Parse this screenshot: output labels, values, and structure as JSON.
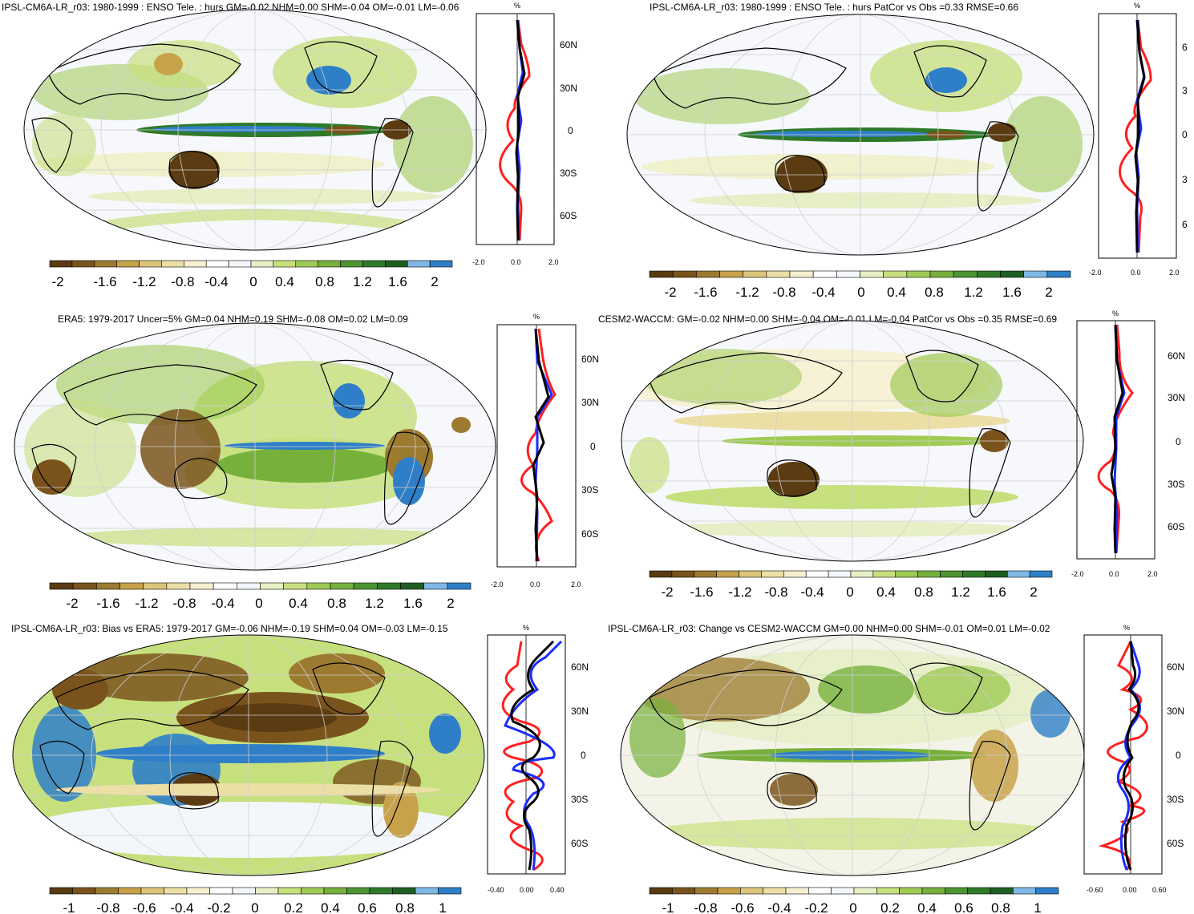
{
  "palettes": {
    "brown_green_blue": [
      "#5a3b12",
      "#7a531c",
      "#9c7a30",
      "#c8a24a",
      "#dcc57a",
      "#ecdfa6",
      "#f6f0d0",
      "#ffffff",
      "#f3f7fb",
      "#e6efc6",
      "#c7e07e",
      "#9fcb55",
      "#77b13c",
      "#4d9432",
      "#2f7a2a",
      "#1f5e22",
      "#7fb8e6",
      "#2f7fc8"
    ]
  },
  "panels": [
    {
      "title": "IPSL-CM6A-LR_r03: 1980-1999 : ENSO Tele. : hurs GM=-0.02 NHM=0.00 SHM=-0.04 OM=-0.01 LM=-0.06",
      "profile_unit": "%",
      "lat_labels": [
        "60N",
        "30N",
        "0",
        "30S",
        "60S"
      ],
      "x_ticks": [
        "-2.0",
        "0.0",
        "2.0"
      ],
      "colorbar_labels": [
        "-2",
        "-1.6",
        "-1.2",
        "-0.8",
        "-0.4",
        "0",
        "0.4",
        "0.8",
        "1.2",
        "1.6",
        "2"
      ]
    },
    {
      "title": "IPSL-CM6A-LR_r03: 1980-1999 : ENSO Tele. : hurs PatCor vs Obs =0.33 RMSE=0.66",
      "profile_unit": "%",
      "lat_labels": [
        "6",
        "3",
        "0",
        "3",
        "6"
      ],
      "x_ticks": [
        "-2.0",
        "0.0",
        "2.0"
      ],
      "colorbar_labels": [
        "-2",
        "-1.6",
        "-1.2",
        "-0.8",
        "-0.4",
        "0",
        "0.4",
        "0.8",
        "1.2",
        "1.6",
        "2"
      ]
    },
    {
      "title": "ERA5: 1979-2017 Uncer=5% GM=0.04 NHM=0.19 SHM=-0.08 OM=0.02 LM=0.09",
      "profile_unit": "%",
      "lat_labels": [
        "60N",
        "30N",
        "0",
        "30S",
        "60S"
      ],
      "x_ticks": [
        "-2.0",
        "0.0",
        "2.0"
      ],
      "colorbar_labels": [
        "-2",
        "-1.6",
        "-1.2",
        "-0.8",
        "-0.4",
        "0",
        "0.4",
        "0.8",
        "1.2",
        "1.6",
        "2"
      ]
    },
    {
      "title": "CESM2-WACCM: GM=-0.02 NHM=0.00 SHM=-0.04 OM=-0.01 LM=-0.04 PatCor vs Obs =0.35 RMSE=0.69",
      "profile_unit": "%",
      "lat_labels": [
        "60N",
        "30N",
        "0",
        "30S",
        "60S"
      ],
      "x_ticks": [
        "-2.0",
        "0.0",
        "2.0"
      ],
      "colorbar_labels": [
        "-2",
        "-1.6",
        "-1.2",
        "-0.8",
        "-0.4",
        "0",
        "0.4",
        "0.8",
        "1.2",
        "1.6",
        "2"
      ]
    },
    {
      "title": "IPSL-CM6A-LR_r03: Bias vs ERA5: 1979-2017 GM=-0.06 NHM=-0.19 SHM=0.04 OM=-0.03 LM=-0.15",
      "profile_unit": "%",
      "lat_labels": [
        "60N",
        "30N",
        "0",
        "30S",
        "60S"
      ],
      "x_ticks": [
        "-0.40",
        "0.00",
        "0.40"
      ],
      "colorbar_labels": [
        "-1",
        "-0.8",
        "-0.6",
        "-0.4",
        "-0.2",
        "0",
        "0.2",
        "0.4",
        "0.6",
        "0.8",
        "1"
      ]
    },
    {
      "title": "IPSL-CM6A-LR_r03: Change vs CESM2-WACCM GM=0.00 NHM=0.00 SHM=-0.01 OM=0.01 LM=-0.02",
      "profile_unit": "%",
      "lat_labels": [
        "60N",
        "30N",
        "0",
        "30S",
        "60S"
      ],
      "x_ticks": [
        "-0.60",
        "0.00",
        "0.60"
      ],
      "colorbar_labels": [
        "-1",
        "-0.8",
        "-0.6",
        "-0.4",
        "-0.2",
        "0",
        "0.2",
        "0.4",
        "0.6",
        "0.8",
        "1"
      ]
    }
  ]
}
